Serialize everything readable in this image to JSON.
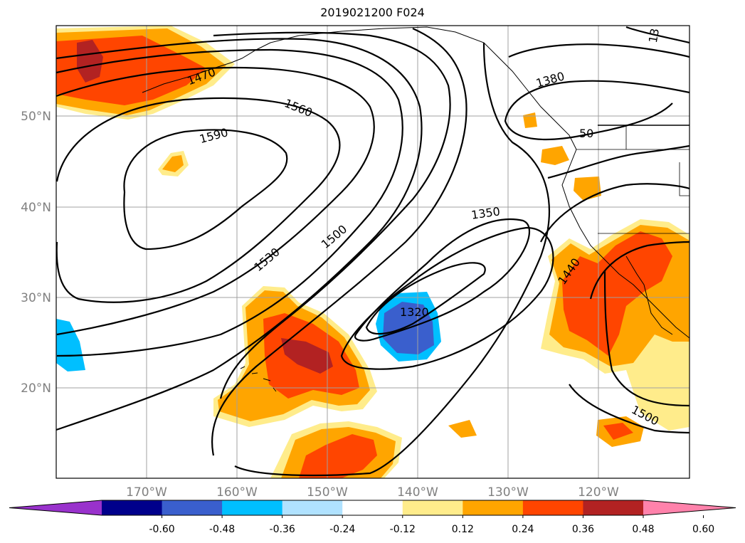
{
  "title": "2019021200 F024",
  "map": {
    "lat_labels": [
      "50°N",
      "40°N",
      "30°N",
      "20°N"
    ],
    "lon_labels": [
      "170°W",
      "160°W",
      "150°W",
      "140°W",
      "130°W",
      "120°W"
    ],
    "contour_labels": [
      "1470",
      "1560",
      "1590",
      "1530",
      "1500",
      "1350",
      "1380",
      "1320",
      "1440",
      "1500",
      "13",
      "50"
    ],
    "gridlines": true
  },
  "colorbar": {
    "colors": [
      "#9932cc",
      "#00008b",
      "#3a5fcd",
      "#00bfff",
      "#b0e2ff",
      "#ffffff",
      "#ffec8b",
      "#ffa500",
      "#ff4500",
      "#b22222",
      "#ff82ab"
    ],
    "tick_labels": [
      "-0.60",
      "-0.48",
      "-0.36",
      "-0.24",
      "-0.12",
      "0.12",
      "0.24",
      "0.36",
      "0.48",
      "0.60"
    ],
    "extend": "both"
  }
}
